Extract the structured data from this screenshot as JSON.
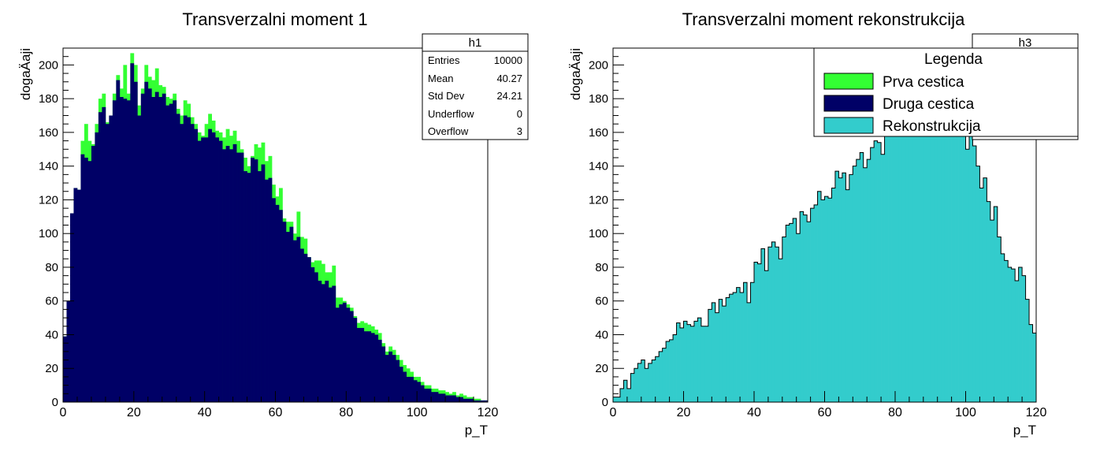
{
  "colors": {
    "first": "#33ff33",
    "second": "#000066",
    "reco": "#33cccc",
    "outline": "#000000"
  },
  "chart_data": [
    {
      "type": "bar",
      "title": "Transverzalni moment 1",
      "xlabel": "p_T",
      "ylabel": "dogaÄaji",
      "xlim": [
        0,
        120
      ],
      "ylim": [
        0,
        210
      ],
      "bin_width": 1,
      "x_ticks": [
        0,
        20,
        40,
        60,
        80,
        100,
        120
      ],
      "y_ticks": [
        0,
        20,
        40,
        60,
        80,
        100,
        120,
        140,
        160,
        180,
        200
      ],
      "stats": {
        "name": "h1",
        "rows": [
          {
            "label": "Entries",
            "value": "10000"
          },
          {
            "label": "Mean",
            "value": "40.27"
          },
          {
            "label": "Std Dev",
            "value": "24.21"
          },
          {
            "label": "Underflow",
            "value": "0"
          },
          {
            "label": "Overflow",
            "value": "3"
          }
        ]
      },
      "series": [
        {
          "name": "Prva cestica",
          "color": "#33ff33",
          "values": [
            39,
            60,
            112,
            127,
            126,
            155,
            165,
            155,
            153,
            165,
            180,
            183,
            166,
            170,
            183,
            194,
            186,
            200,
            183,
            207,
            200,
            176,
            186,
            200,
            193,
            191,
            198,
            188,
            187,
            181,
            180,
            183,
            174,
            170,
            179,
            177,
            169,
            165,
            160,
            158,
            165,
            171,
            167,
            161,
            160,
            157,
            162,
            158,
            161,
            155,
            150,
            145,
            140,
            146,
            153,
            151,
            154,
            143,
            146,
            129,
            122,
            127,
            109,
            107,
            107,
            100,
            113,
            98,
            97,
            86,
            83,
            84,
            84,
            82,
            77,
            77,
            81,
            62,
            62,
            60,
            58,
            56,
            51,
            47,
            48,
            47,
            46,
            45,
            43,
            41,
            35,
            30,
            33,
            31,
            28,
            25,
            22,
            20,
            18,
            15,
            15,
            12,
            10,
            10,
            8,
            8,
            7,
            7,
            6,
            5,
            6,
            4,
            5,
            4,
            3,
            3,
            2,
            2,
            1,
            1
          ]
        },
        {
          "name": "Druga cestica",
          "color": "#000066",
          "values": [
            39,
            60,
            112,
            127,
            126,
            147,
            145,
            143,
            152,
            160,
            172,
            175,
            165,
            170,
            179,
            191,
            181,
            180,
            179,
            201,
            190,
            170,
            183,
            190,
            186,
            181,
            184,
            181,
            183,
            176,
            177,
            179,
            171,
            165,
            170,
            169,
            165,
            162,
            155,
            157,
            157,
            162,
            160,
            157,
            155,
            150,
            152,
            150,
            153,
            148,
            148,
            137,
            136,
            145,
            144,
            137,
            141,
            132,
            133,
            121,
            117,
            114,
            107,
            101,
            104,
            96,
            98,
            91,
            88,
            86,
            80,
            77,
            72,
            70,
            72,
            68,
            69,
            56,
            58,
            59,
            56,
            54,
            50,
            44,
            44,
            42,
            42,
            41,
            40,
            37,
            33,
            28,
            30,
            28,
            25,
            21,
            18,
            15,
            15,
            13,
            12,
            10,
            8,
            8,
            6,
            6,
            5,
            5,
            4,
            4,
            4,
            3,
            3,
            2,
            2,
            2,
            1,
            1,
            1,
            1
          ]
        }
      ]
    },
    {
      "type": "bar",
      "title": "Transverzalni moment rekonstrukcija",
      "xlabel": "p_T",
      "ylabel": "dogaÄaji",
      "xlim": [
        0,
        120
      ],
      "ylim": [
        0,
        210
      ],
      "bin_width": 1,
      "x_ticks": [
        0,
        20,
        40,
        60,
        80,
        100,
        120
      ],
      "y_ticks": [
        0,
        20,
        40,
        60,
        80,
        100,
        120,
        140,
        160,
        180,
        200
      ],
      "stats": {
        "name": "h3"
      },
      "legend": {
        "title": "Legenda",
        "placement": "top-right",
        "entries": [
          {
            "label": "Prva cestica",
            "color": "#33ff33"
          },
          {
            "label": "Druga cestica",
            "color": "#000066"
          },
          {
            "label": "Rekonstrukcija",
            "color": "#33cccc"
          }
        ]
      },
      "series": [
        {
          "name": "Rekonstrukcija",
          "color": "#33cccc",
          "values": [
            3,
            3,
            8,
            13,
            8,
            17,
            20,
            23,
            25,
            20,
            23,
            25,
            27,
            30,
            32,
            36,
            37,
            40,
            47,
            44,
            48,
            46,
            45,
            48,
            50,
            45,
            45,
            55,
            59,
            53,
            61,
            57,
            62,
            64,
            65,
            68,
            65,
            71,
            59,
            71,
            83,
            82,
            91,
            78,
            92,
            95,
            92,
            85,
            98,
            105,
            106,
            109,
            100,
            113,
            111,
            107,
            115,
            117,
            125,
            120,
            122,
            121,
            127,
            137,
            133,
            136,
            126,
            135,
            140,
            144,
            148,
            139,
            144,
            151,
            155,
            154,
            147,
            158,
            169,
            169,
            163,
            180,
            172,
            181,
            168,
            179,
            176,
            182,
            193,
            186,
            195,
            176,
            184,
            198,
            200,
            185,
            196,
            187,
            166,
            162,
            150,
            158,
            152,
            140,
            127,
            133,
            119,
            108,
            116,
            98,
            88,
            84,
            80,
            79,
            72,
            80,
            75,
            61,
            46,
            41
          ]
        }
      ]
    }
  ]
}
